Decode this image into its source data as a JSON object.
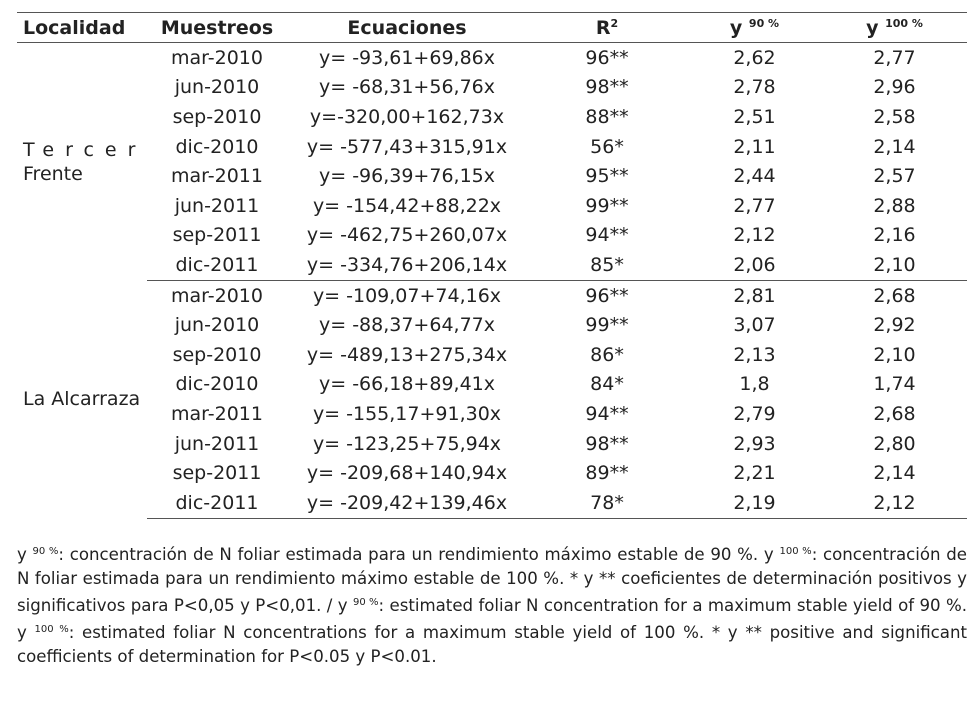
{
  "header": {
    "localidad": "Localidad",
    "muestreos": "Muestreos",
    "ecuaciones": "Ecuaciones",
    "r2": "R",
    "r2_sup": "2",
    "y90": "y",
    "y90_sup": "90 %",
    "y100": "y",
    "y100_sup": "100 %"
  },
  "groups": [
    {
      "location_line1": "Tercer",
      "location_line2": "Frente",
      "rows": [
        {
          "muestreo": "mar-2010",
          "ecuacion": "y= -93,61+69,86x",
          "r2": "96**",
          "y90": "2,62",
          "y100": "2,77"
        },
        {
          "muestreo": "jun-2010",
          "ecuacion": "y= -68,31+56,76x",
          "r2": "98**",
          "y90": "2,78",
          "y100": "2,96"
        },
        {
          "muestreo": "sep-2010",
          "ecuacion": "y=-320,00+162,73x",
          "r2": "88**",
          "y90": "2,51",
          "y100": "2,58"
        },
        {
          "muestreo": "dic-2010",
          "ecuacion": "y= -577,43+315,91x",
          "r2": "56*",
          "y90": "2,11",
          "y100": "2,14"
        },
        {
          "muestreo": "mar-2011",
          "ecuacion": "y= -96,39+76,15x",
          "r2": "95**",
          "y90": "2,44",
          "y100": "2,57"
        },
        {
          "muestreo": "jun-2011",
          "ecuacion": "y= -154,42+88,22x",
          "r2": "99**",
          "y90": "2,77",
          "y100": "2,88"
        },
        {
          "muestreo": "sep-2011",
          "ecuacion": "y= -462,75+260,07x",
          "r2": "94**",
          "y90": "2,12",
          "y100": "2,16"
        },
        {
          "muestreo": "dic-2011",
          "ecuacion": "y= -334,76+206,14x",
          "r2": "85*",
          "y90": "2,06",
          "y100": "2,10"
        }
      ]
    },
    {
      "location_line1": "La Alcarraza",
      "location_line2": "",
      "rows": [
        {
          "muestreo": "mar-2010",
          "ecuacion": "y= -109,07+74,16x",
          "r2": "96**",
          "y90": "2,81",
          "y100": "2,68"
        },
        {
          "muestreo": "jun-2010",
          "ecuacion": "y= -88,37+64,77x",
          "r2": "99**",
          "y90": "3,07",
          "y100": "2,92"
        },
        {
          "muestreo": "sep-2010",
          "ecuacion": "y= -489,13+275,34x",
          "r2": "86*",
          "y90": "2,13",
          "y100": "2,10"
        },
        {
          "muestreo": "dic-2010",
          "ecuacion": "y= -66,18+89,41x",
          "r2": "84*",
          "y90": "1,8",
          "y100": "1,74"
        },
        {
          "muestreo": "mar-2011",
          "ecuacion": "y= -155,17+91,30x",
          "r2": "94**",
          "y90": "2,79",
          "y100": "2,68"
        },
        {
          "muestreo": "jun-2011",
          "ecuacion": "y= -123,25+75,94x",
          "r2": "98**",
          "y90": "2,93",
          "y100": "2,80"
        },
        {
          "muestreo": "sep-2011",
          "ecuacion": "y= -209,68+140,94x",
          "r2": "89**",
          "y90": "2,21",
          "y100": "2,14"
        },
        {
          "muestreo": "dic-2011",
          "ecuacion": "y= -209,42+139,46x",
          "r2": "78*",
          "y90": "2,19",
          "y100": "2,12"
        }
      ]
    }
  ],
  "footnote": {
    "y": "y",
    "sup90": "90 %",
    "sup100": "100 %",
    "part1": ": concentración de N foliar estimada para un rendimiento máximo estable de 90 %. ",
    "part2": ": concentración de N foliar estimada para un rendimiento máximo estable de 100 %. * y ** coeficientes de determinación positivos y significativos para P<0,05 y P<0,01. / ",
    "part3": ": estimated foliar N concentration for a maximum stable yield of 90 %. ",
    "part4": ": estimated foliar N concentrations for a maximum stable yield of 100 %. * y ** positive and significant coefficients of determination for P<0.05 y P<0.01."
  }
}
